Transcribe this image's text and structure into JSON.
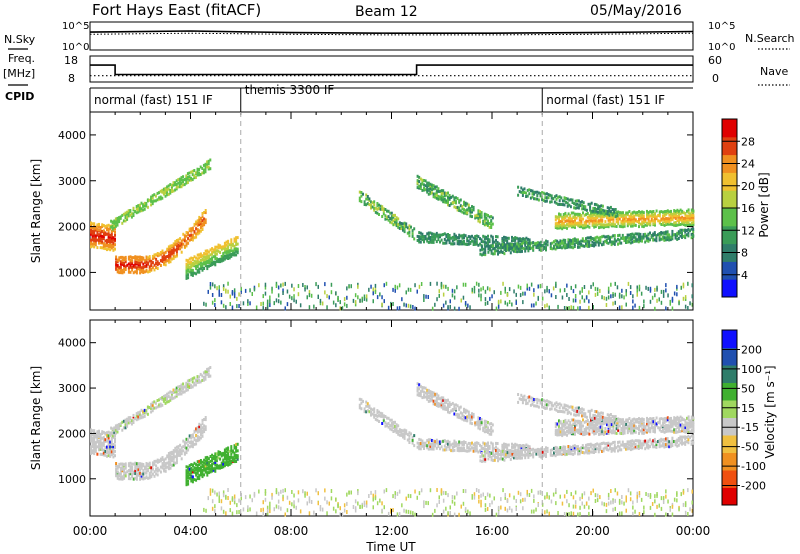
{
  "header": {
    "station": "Fort Hays East (fitACF)",
    "beam": "Beam 12",
    "date": "05/May/2016"
  },
  "left_labels": {
    "nsky": "N.Sky",
    "freq": "Freq.",
    "freq_unit": "[MHz]",
    "cpid": "CPID"
  },
  "right_labels": {
    "nsearch": "N.Search",
    "nave": "Nave"
  },
  "colors": {
    "power_scale": [
      "#1010ff",
      "#2050b0",
      "#2f7d6a",
      "#3a9c58",
      "#5cc04a",
      "#b8d040",
      "#f0c030",
      "#f09020",
      "#e04010",
      "#e00000"
    ],
    "velocity_scale": [
      "#e00000",
      "#f05010",
      "#f09020",
      "#f0c040",
      "#c8c8c8",
      "#a0d860",
      "#40b030",
      "#2f7d6a",
      "#2050b0",
      "#1010ff"
    ]
  },
  "chart_data": [
    {
      "type": "line",
      "panel": "noise",
      "title": "Fort Hays East (fitACF)   Beam 12   05/May/2016",
      "left_tick_labels": [
        "10^5",
        "10^0"
      ],
      "right_tick_labels": [
        "10^5",
        "10^0"
      ],
      "series": [
        {
          "name": "N.Sky",
          "x": [
            "00:00",
            "04:00",
            "08:00",
            "12:00",
            "16:00",
            "20:00",
            "24:00"
          ],
          "y": [
            3.2,
            3.4,
            3.1,
            3.0,
            3.0,
            3.1,
            3.3
          ]
        },
        {
          "name": "N.Search",
          "x": [
            "00:00",
            "04:00",
            "08:00",
            "12:00",
            "16:00",
            "20:00",
            "24:00"
          ],
          "y": [
            2.8,
            3.0,
            2.8,
            2.7,
            2.7,
            2.8,
            3.0
          ]
        }
      ],
      "ylim": [
        0,
        5
      ]
    },
    {
      "type": "line",
      "panel": "frequency",
      "left_tick_labels": [
        "18",
        "8"
      ],
      "right_tick_labels": [
        "60",
        "0"
      ],
      "ylim_left": [
        8,
        18
      ],
      "ylim_right": [
        0,
        60
      ],
      "series": [
        {
          "name": "Freq.",
          "points": [
            [
              0.0,
              14.5
            ],
            [
              1.0,
              14.5
            ],
            [
              1.0,
              10.9
            ],
            [
              13.0,
              10.9
            ],
            [
              13.0,
              14.5
            ],
            [
              24.0,
              14.5
            ]
          ]
        },
        {
          "name": "Nave",
          "points": [
            [
              0.0,
              10
            ],
            [
              24.0,
              10
            ]
          ]
        }
      ]
    },
    {
      "type": "table",
      "panel": "cpid",
      "segments": [
        {
          "label": "normal (fast) 151 IF",
          "start": 0,
          "end": 6
        },
        {
          "label": "themis 3300 IF",
          "start": 6,
          "end": 18
        },
        {
          "label": "normal (fast) 151 IF",
          "start": 18,
          "end": 24
        }
      ]
    },
    {
      "type": "heatmap",
      "panel": "power",
      "ylabel": "Slant Range [km]",
      "xlim": [
        0,
        24
      ],
      "ylim": [
        180,
        4500
      ],
      "y_ticks": [
        1000,
        2000,
        3000,
        4000
      ],
      "colorbar_label": "Power [dB]",
      "colorbar_ticks": [
        "4",
        "8",
        "12",
        "16",
        "20",
        "24",
        "28"
      ],
      "colorbar_range": [
        0,
        30
      ]
    },
    {
      "type": "heatmap",
      "panel": "velocity",
      "ylabel": "Slant Range [km]",
      "xlabel": "Time UT",
      "xlim": [
        0,
        24
      ],
      "ylim": [
        180,
        4500
      ],
      "x_tick_labels": [
        "00:00",
        "04:00",
        "08:00",
        "12:00",
        "16:00",
        "20:00",
        "00:00"
      ],
      "y_ticks": [
        1000,
        2000,
        3000,
        4000
      ],
      "colorbar_label": "Velocity [m s⁻¹]",
      "colorbar_ticks": [
        "-200",
        "-100",
        "-50",
        "-15",
        "15",
        "50",
        "100",
        "200"
      ],
      "colorbar_range": [
        -250,
        250
      ]
    }
  ]
}
